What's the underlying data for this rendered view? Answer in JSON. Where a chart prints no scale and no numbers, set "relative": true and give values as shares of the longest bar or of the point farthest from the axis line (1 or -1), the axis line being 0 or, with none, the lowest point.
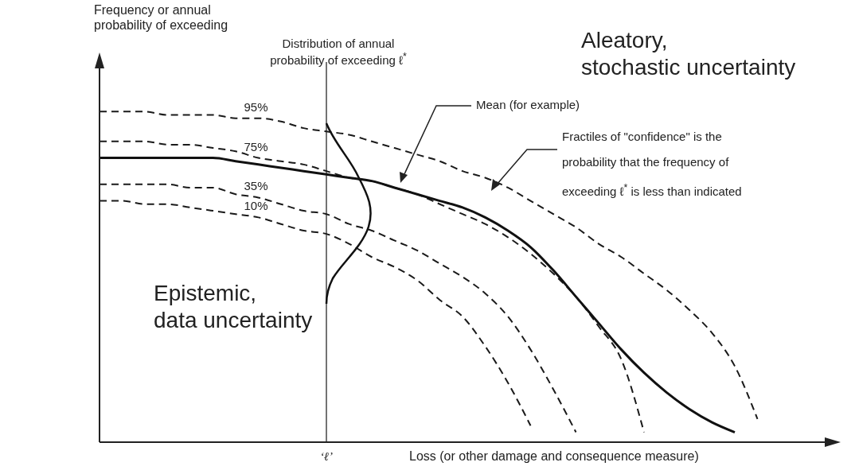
{
  "chart_data": {
    "type": "line",
    "relative": true,
    "xlabel": "Loss (or other damage and consequence measure)",
    "categories": [
      null,
      null,
      null,
      null,
      null,
      null,
      null,
      null,
      null,
      null,
      null,
      null,
      null,
      null,
      null,
      null,
      null,
      null,
      null,
      null,
      null,
      null,
      null,
      null,
      null,
      null,
      null,
      null,
      null,
      null,
      null,
      null,
      null
    ],
    "series": [
      {
        "name": "95%",
        "color": "#1a1a1a",
        "line_style": "dashed",
        "values": [
          1.0,
          1.0,
          1.0,
          0.99,
          0.99,
          0.99,
          0.98,
          0.98,
          0.97,
          0.95,
          0.94,
          0.93,
          0.91,
          0.89,
          0.87,
          0.85,
          0.82,
          0.8,
          0.77,
          0.73,
          0.69,
          0.65,
          0.6,
          0.56,
          0.51,
          0.46,
          0.4,
          0.33,
          0.23,
          0.07,
          null,
          null,
          null
        ]
      },
      {
        "name": "75%",
        "color": "#1a1a1a",
        "line_style": "dashed",
        "values": [
          0.91,
          0.91,
          0.91,
          0.9,
          0.9,
          0.89,
          0.88,
          0.86,
          0.85,
          0.84,
          0.82,
          0.8,
          0.79,
          0.77,
          0.75,
          0.72,
          0.69,
          0.66,
          0.62,
          0.57,
          0.51,
          0.44,
          0.35,
          0.25,
          0.03,
          null,
          null,
          null,
          null,
          null,
          null,
          null,
          null
        ]
      },
      {
        "color": "#111111",
        "line_style": "solid",
        "values": [
          0.86,
          0.86,
          0.86,
          0.86,
          0.86,
          0.86,
          0.85,
          0.84,
          0.83,
          0.82,
          0.81,
          0.8,
          0.79,
          0.77,
          0.75,
          0.73,
          0.71,
          0.68,
          0.64,
          0.59,
          0.52,
          0.44,
          0.36,
          0.28,
          0.21,
          0.15,
          0.1,
          0.06,
          0.03,
          null,
          null,
          null,
          null
        ]
      },
      {
        "name": "35%",
        "color": "#1a1a1a",
        "line_style": "dashed",
        "values": [
          0.78,
          0.78,
          0.78,
          0.78,
          0.77,
          0.77,
          0.75,
          0.74,
          0.72,
          0.7,
          0.69,
          0.66,
          0.64,
          0.61,
          0.58,
          0.54,
          0.5,
          0.45,
          0.38,
          0.28,
          0.16,
          0.03,
          null,
          null,
          null,
          null,
          null,
          null,
          null,
          null,
          null,
          null,
          null
        ]
      },
      {
        "name": "10%",
        "color": "#1a1a1a",
        "line_style": "dashed",
        "values": [
          0.73,
          0.73,
          0.72,
          0.72,
          0.71,
          0.7,
          0.69,
          0.68,
          0.66,
          0.64,
          0.63,
          0.6,
          0.56,
          0.53,
          0.49,
          0.43,
          0.38,
          0.29,
          0.18,
          0.05,
          null,
          null,
          null,
          null,
          null,
          null,
          null,
          null,
          null,
          null,
          null,
          null,
          null
        ]
      }
    ],
    "ref_lines": [
      {
        "axis": "x",
        "label": "‘ℓ’",
        "color": "#444444"
      }
    ],
    "annotations": [
      "Frequency or annual probability of exceeding",
      "Distribution of annual\nprobability of exceeding ℓ$^{*}$",
      "Aleatory,\nstochastic uncertainty",
      "Mean (for example)",
      "Fractiles of \"confidence\" is the\nprobability that the frequency of\nexceeding ℓ$^{*}$ is less than indicated",
      "Epistemic,\ndata uncertainty"
    ],
    "grid": false,
    "legend": false
  }
}
